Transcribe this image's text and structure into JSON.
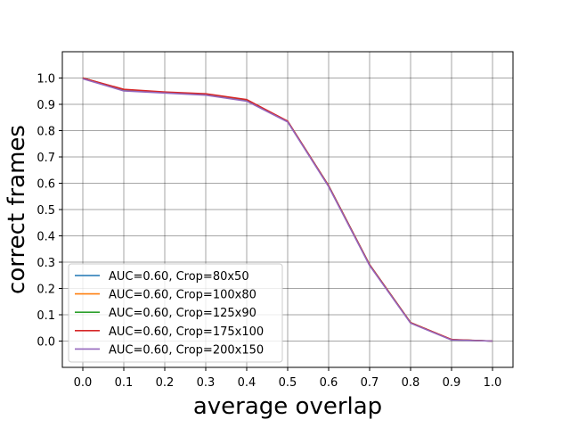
{
  "chart_data": {
    "type": "line",
    "title": "",
    "xlabel": "average overlap",
    "ylabel": "correct frames",
    "xlim": [
      -0.05,
      1.05
    ],
    "ylim": [
      -0.1,
      1.1
    ],
    "grid": true,
    "legend_position": "lower-left",
    "x_ticks": [
      0.0,
      0.1,
      0.2,
      0.3,
      0.4,
      0.5,
      0.6,
      0.7,
      0.8,
      0.9,
      1.0
    ],
    "x_tick_labels": [
      "0.0",
      "0.1",
      "0.2",
      "0.3",
      "0.4",
      "0.5",
      "0.6",
      "0.7",
      "0.8",
      "0.9",
      "1.0"
    ],
    "y_ticks": [
      0.0,
      0.1,
      0.2,
      0.3,
      0.4,
      0.5,
      0.6,
      0.7,
      0.8,
      0.9,
      1.0
    ],
    "y_tick_labels": [
      "0.0",
      "0.1",
      "0.2",
      "0.3",
      "0.4",
      "0.5",
      "0.6",
      "0.7",
      "0.8",
      "0.9",
      "1.0"
    ],
    "x": [
      0.0,
      0.1,
      0.2,
      0.3,
      0.4,
      0.5,
      0.6,
      0.7,
      0.8,
      0.9,
      1.0
    ],
    "series": [
      {
        "name": "AUC=0.60, Crop=80x50",
        "color": "#1f77b4",
        "values": [
          1.0,
          0.955,
          0.945,
          0.938,
          0.915,
          0.835,
          0.59,
          0.29,
          0.07,
          0.005,
          0.0
        ]
      },
      {
        "name": "AUC=0.60, Crop=100x80",
        "color": "#ff7f0e",
        "values": [
          1.0,
          0.955,
          0.945,
          0.938,
          0.915,
          0.835,
          0.59,
          0.29,
          0.07,
          0.005,
          0.0
        ]
      },
      {
        "name": "AUC=0.60, Crop=125x90",
        "color": "#2ca02c",
        "values": [
          1.0,
          0.955,
          0.945,
          0.938,
          0.915,
          0.835,
          0.59,
          0.29,
          0.07,
          0.005,
          0.0
        ]
      },
      {
        "name": "AUC=0.60, Crop=175x100",
        "color": "#d62728",
        "values": [
          1.0,
          0.957,
          0.947,
          0.94,
          0.918,
          0.836,
          0.59,
          0.29,
          0.07,
          0.006,
          0.0
        ]
      },
      {
        "name": "AUC=0.60, Crop=200x150",
        "color": "#9467bd",
        "values": [
          0.997,
          0.951,
          0.943,
          0.935,
          0.912,
          0.833,
          0.587,
          0.287,
          0.068,
          0.004,
          0.0
        ]
      }
    ]
  }
}
